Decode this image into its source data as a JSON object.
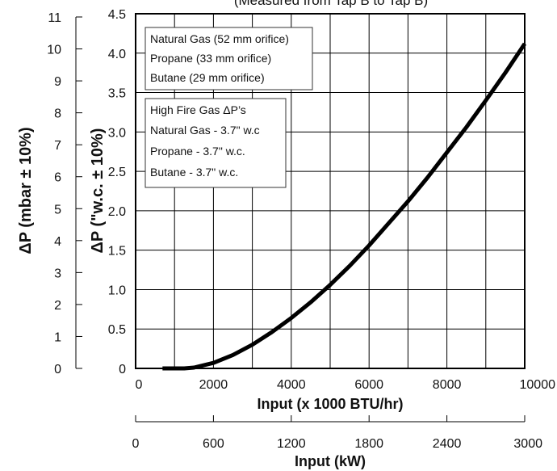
{
  "chart_data": {
    "type": "line",
    "title": "(Measured from Tap B to Tap B)",
    "xlabel": "Input (x 1000 BTU/hr)",
    "xlabel_secondary": "Input (kW)",
    "ylabel": "ΔP (\"w.c.  ± 10%)",
    "ylabel_secondary": "ΔP (mbar  ± 10%)",
    "xlim": [
      0,
      10000
    ],
    "ylim": [
      0,
      4.5
    ],
    "x_ticks": [
      "0",
      "2000",
      "4000",
      "6000",
      "8000",
      "10000"
    ],
    "y_ticks": [
      "0",
      "0.5",
      "1.0",
      "1.5",
      "2.0",
      "2.5",
      "3.0",
      "3.5",
      "4.0",
      "4.5"
    ],
    "x2_ticks": [
      "0",
      "600",
      "1200",
      "1800",
      "2400",
      "3000"
    ],
    "y2_ticks": [
      "0",
      "1",
      "2",
      "3",
      "4",
      "5",
      "6",
      "7",
      "8",
      "9",
      "10",
      "11"
    ],
    "grid": true,
    "series": [
      {
        "x": [
          1250,
          1500,
          2000,
          2500,
          3000,
          3500,
          4000,
          4500,
          5000,
          5500,
          6000,
          6500,
          7000,
          7500,
          8000,
          8500,
          9000,
          9500,
          10000
        ],
        "y": [
          0.0,
          0.01,
          0.07,
          0.17,
          0.3,
          0.46,
          0.64,
          0.84,
          1.06,
          1.3,
          1.56,
          1.84,
          2.12,
          2.42,
          2.74,
          3.06,
          3.4,
          3.75,
          4.12
        ]
      }
    ],
    "legend_box_1": [
      "Natural Gas (52 mm orifice)",
      "Propane (33 mm orifice)",
      "Butane (29 mm orifice)"
    ],
    "legend_box_2": [
      "High Fire Gas ΔP’s",
      "Natural Gas - 3.7\" w.c",
      "Propane - 3.7\" w.c.",
      "Butane - 3.7\" w.c."
    ],
    "colors": {
      "line": "#000000",
      "grid": "#000000",
      "background": "#ffffff"
    }
  }
}
